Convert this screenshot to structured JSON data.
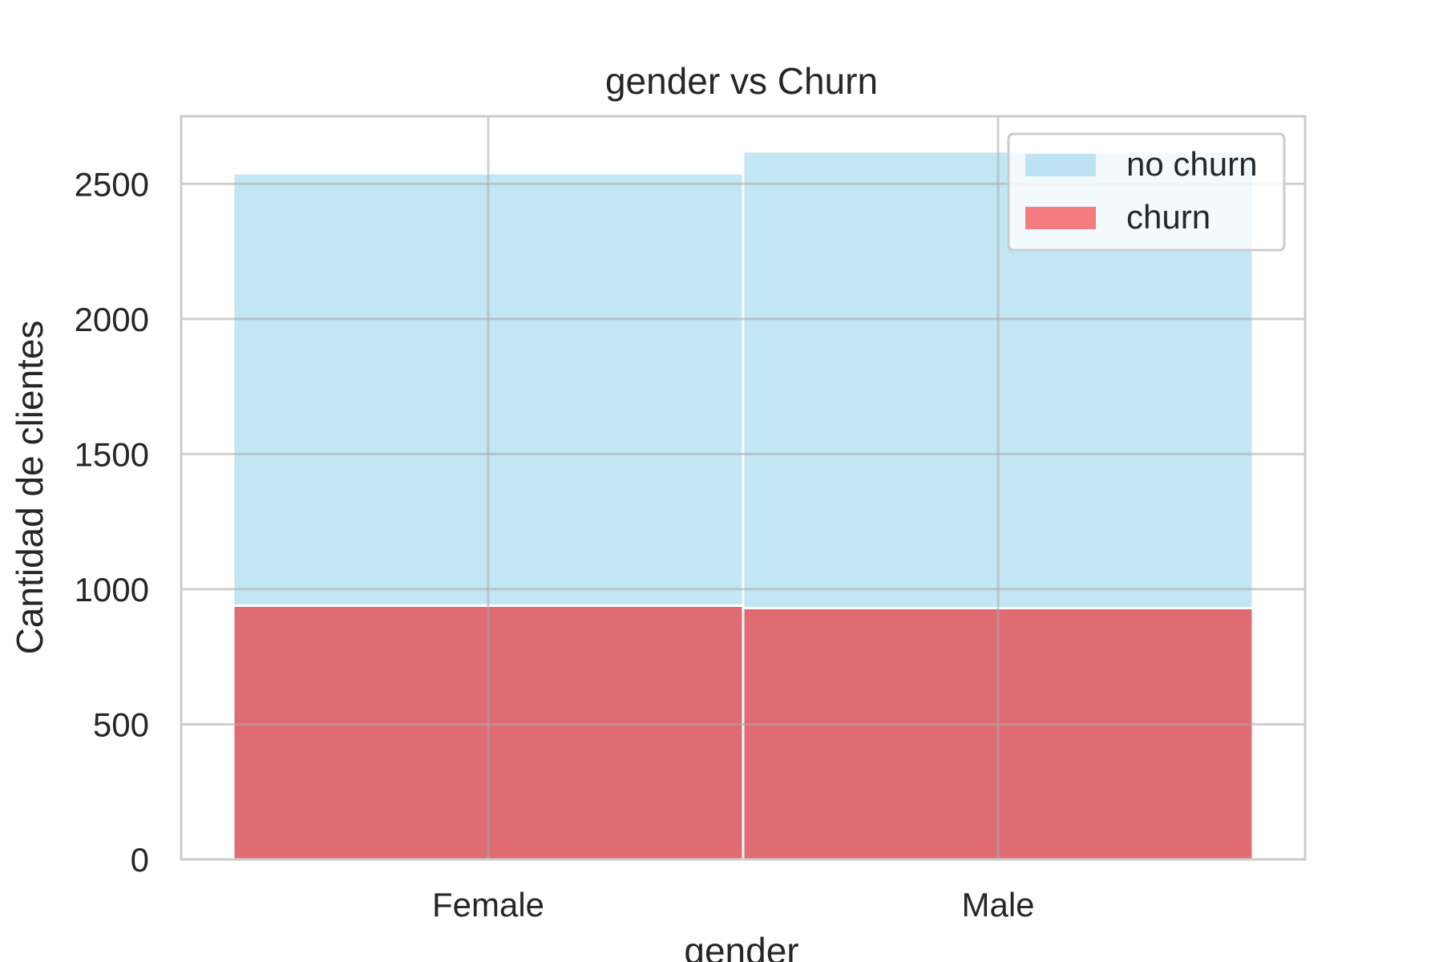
{
  "chart_data": {
    "type": "bar",
    "stacked": true,
    "title": "gender vs Churn",
    "xlabel": "gender",
    "ylabel": "Cantidad de clientes",
    "categories": [
      "Female",
      "Male"
    ],
    "ylim": [
      0,
      2750
    ],
    "yticks": [
      0,
      500,
      1000,
      1500,
      2000,
      2500
    ],
    "grid": true,
    "legend_position": "top-right",
    "series": [
      {
        "name": "churn",
        "values": [
          939,
          930
        ],
        "color": "#e06c73",
        "legend_color": "#f47c80"
      },
      {
        "name": "no churn",
        "values": [
          1600,
          1690
        ],
        "color": "#c3e6f5",
        "legend_color": "#bfe3f3"
      }
    ],
    "legend_order": [
      "no churn",
      "churn"
    ]
  }
}
